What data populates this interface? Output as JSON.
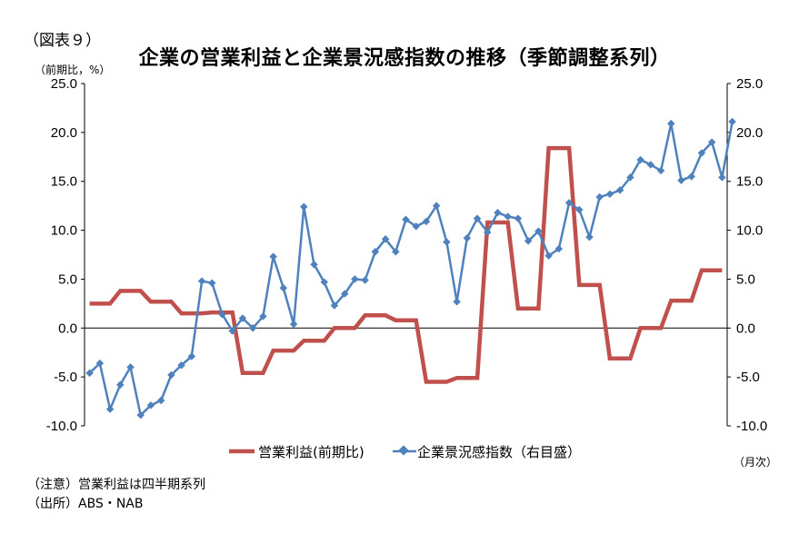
{
  "figure_label": "（図表９）",
  "unit_left": "（前期比，%）",
  "unit_right": "（月次）",
  "notes": [
    "（注意）営業利益は四半期系列",
    "（出所）ABS・NAB"
  ],
  "chart_data": {
    "type": "line",
    "title": "企業の営業利益と企業景況感指数の推移（季節調整系列）",
    "ylim": [
      -10,
      25
    ],
    "y_ticks": [
      "25.0",
      "20.0",
      "15.0",
      "10.0",
      "5.0",
      "0.0",
      "-5.0",
      "-10.0"
    ],
    "y2lim": [
      -10,
      25
    ],
    "y2_ticks": [
      "25.0",
      "20.0",
      "15.0",
      "10.0",
      "5.0",
      "0.0",
      "-5.0",
      "-10.0"
    ],
    "grid": false,
    "legend_position": "bottom",
    "colors": {
      "profit": "#c0504d",
      "index": "#4f81bd"
    },
    "series": [
      {
        "name": "営業利益(前期比)",
        "axis": "left",
        "style": "step-line",
        "values": [
          2.5,
          2.5,
          2.5,
          3.8,
          3.8,
          3.8,
          2.7,
          2.7,
          2.7,
          1.5,
          1.5,
          1.5,
          1.6,
          1.6,
          1.6,
          -4.6,
          -4.6,
          -4.6,
          -2.3,
          -2.3,
          -2.3,
          -1.3,
          -1.3,
          -1.3,
          0.0,
          0.0,
          0.0,
          1.3,
          1.3,
          1.3,
          0.8,
          0.8,
          0.8,
          -5.5,
          -5.5,
          -5.5,
          -5.1,
          -5.1,
          -5.1,
          10.8,
          10.8,
          10.8,
          2.0,
          2.0,
          2.0,
          18.4,
          18.4,
          18.4,
          4.4,
          4.4,
          4.4,
          -3.1,
          -3.1,
          -3.1,
          0.0,
          0.0,
          0.0,
          2.8,
          2.8,
          2.8,
          5.9,
          5.9,
          5.9
        ]
      },
      {
        "name": "企業景況感指数（右目盛）",
        "axis": "right",
        "style": "line-markers",
        "values": [
          -4.6,
          -3.6,
          -8.3,
          -5.8,
          -4.0,
          -8.9,
          -7.9,
          -7.4,
          -4.8,
          -3.8,
          -2.9,
          4.8,
          4.6,
          1.4,
          -0.3,
          1.0,
          0.0,
          1.2,
          7.3,
          4.1,
          0.4,
          12.4,
          6.5,
          4.7,
          2.3,
          3.5,
          5.0,
          4.9,
          7.8,
          9.1,
          7.8,
          11.1,
          10.4,
          10.9,
          12.5,
          8.8,
          2.7,
          9.2,
          11.2,
          9.8,
          11.8,
          11.4,
          11.2,
          8.9,
          9.9,
          7.4,
          8.1,
          12.8,
          12.1,
          9.3,
          13.4,
          13.7,
          14.1,
          15.4,
          17.2,
          16.7,
          16.1,
          20.9,
          15.1,
          15.5,
          17.9,
          19.0,
          15.4,
          21.1
        ]
      }
    ]
  }
}
